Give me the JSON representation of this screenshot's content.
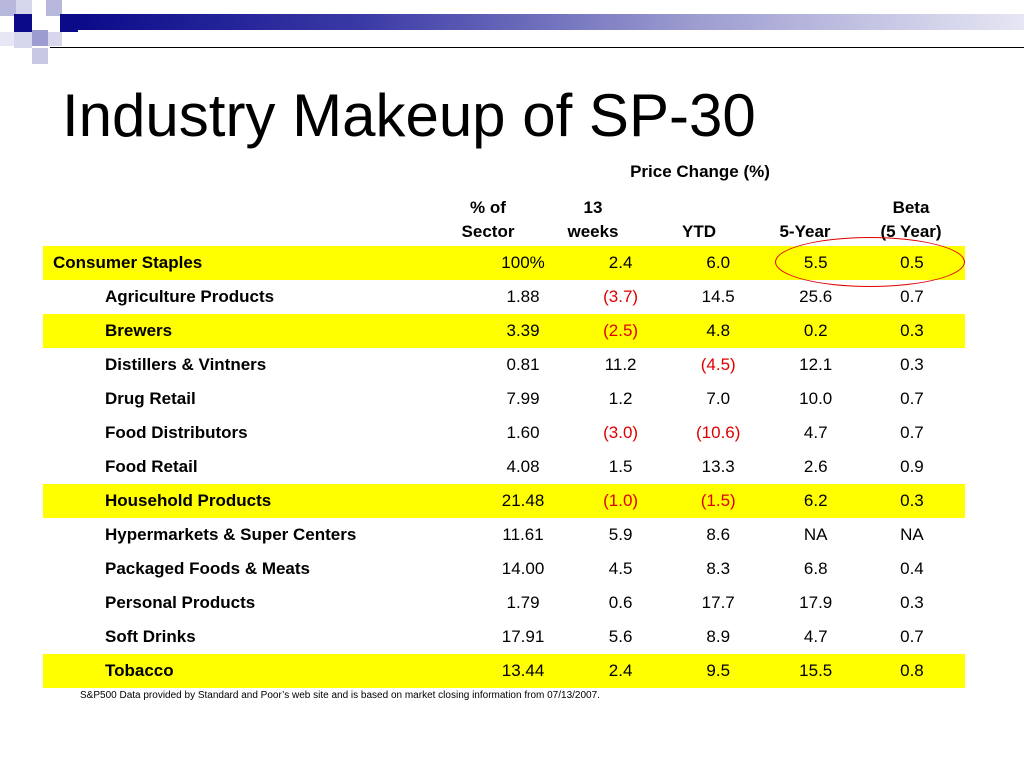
{
  "title": "Industry Makeup of SP-30",
  "price_change_label": "Price Change (%)",
  "columns": [
    {
      "line1": "% of",
      "line2": "Sector"
    },
    {
      "line1": "13",
      "line2": "weeks"
    },
    {
      "line1": "",
      "line2": "YTD"
    },
    {
      "line1": "",
      "line2": "5-Year"
    },
    {
      "line1": "Beta",
      "line2": "(5 Year)"
    }
  ],
  "rows": [
    {
      "label": "Consumer Staples",
      "top": true,
      "highlight": true,
      "values": [
        "100%",
        "2.4",
        "6.0",
        "5.5",
        "0.5"
      ],
      "neg": [
        false,
        false,
        false,
        false,
        false
      ]
    },
    {
      "label": "Agriculture Products",
      "top": false,
      "highlight": false,
      "values": [
        "1.88",
        "(3.7)",
        "14.5",
        "25.6",
        "0.7"
      ],
      "neg": [
        false,
        true,
        false,
        false,
        false
      ]
    },
    {
      "label": "Brewers",
      "top": false,
      "highlight": true,
      "values": [
        "3.39",
        "(2.5)",
        "4.8",
        "0.2",
        "0.3"
      ],
      "neg": [
        false,
        true,
        false,
        false,
        false
      ]
    },
    {
      "label": "Distillers & Vintners",
      "top": false,
      "highlight": false,
      "values": [
        "0.81",
        "11.2",
        "(4.5)",
        "12.1",
        "0.3"
      ],
      "neg": [
        false,
        false,
        true,
        false,
        false
      ]
    },
    {
      "label": "Drug Retail",
      "top": false,
      "highlight": false,
      "values": [
        "7.99",
        "1.2",
        "7.0",
        "10.0",
        "0.7"
      ],
      "neg": [
        false,
        false,
        false,
        false,
        false
      ]
    },
    {
      "label": "Food Distributors",
      "top": false,
      "highlight": false,
      "values": [
        "1.60",
        "(3.0)",
        "(10.6)",
        "4.7",
        "0.7"
      ],
      "neg": [
        false,
        true,
        true,
        false,
        false
      ]
    },
    {
      "label": "Food Retail",
      "top": false,
      "highlight": false,
      "values": [
        "4.08",
        "1.5",
        "13.3",
        "2.6",
        "0.9"
      ],
      "neg": [
        false,
        false,
        false,
        false,
        false
      ]
    },
    {
      "label": "Household Products",
      "top": false,
      "highlight": true,
      "values": [
        "21.48",
        "(1.0)",
        "(1.5)",
        "6.2",
        "0.3"
      ],
      "neg": [
        false,
        true,
        true,
        false,
        false
      ]
    },
    {
      "label": "Hypermarkets & Super Centers",
      "top": false,
      "highlight": false,
      "values": [
        "11.61",
        "5.9",
        "8.6",
        "NA",
        "NA"
      ],
      "neg": [
        false,
        false,
        false,
        false,
        false
      ]
    },
    {
      "label": "Packaged Foods & Meats",
      "top": false,
      "highlight": false,
      "values": [
        "14.00",
        "4.5",
        "8.3",
        "6.8",
        "0.4"
      ],
      "neg": [
        false,
        false,
        false,
        false,
        false
      ]
    },
    {
      "label": "Personal Products",
      "top": false,
      "highlight": false,
      "values": [
        "1.79",
        "0.6",
        "17.7",
        "17.9",
        "0.3"
      ],
      "neg": [
        false,
        false,
        false,
        false,
        false
      ]
    },
    {
      "label": "Soft Drinks",
      "top": false,
      "highlight": false,
      "values": [
        "17.91",
        "5.6",
        "8.9",
        "4.7",
        "0.7"
      ],
      "neg": [
        false,
        false,
        false,
        false,
        false
      ]
    },
    {
      "label": "Tobacco",
      "top": false,
      "highlight": true,
      "values": [
        "13.44",
        "2.4",
        "9.5",
        "15.5",
        "0.8"
      ],
      "neg": [
        false,
        false,
        false,
        false,
        false
      ]
    }
  ],
  "footnote": "S&P500 Data provided by Standard and Poor’s web site and is based on market closing information from 07/13/2007.",
  "colors": {
    "highlight": "#ffff00",
    "negative": "#e00000",
    "accent": "#0b0b8a",
    "circle": "#e00000"
  }
}
